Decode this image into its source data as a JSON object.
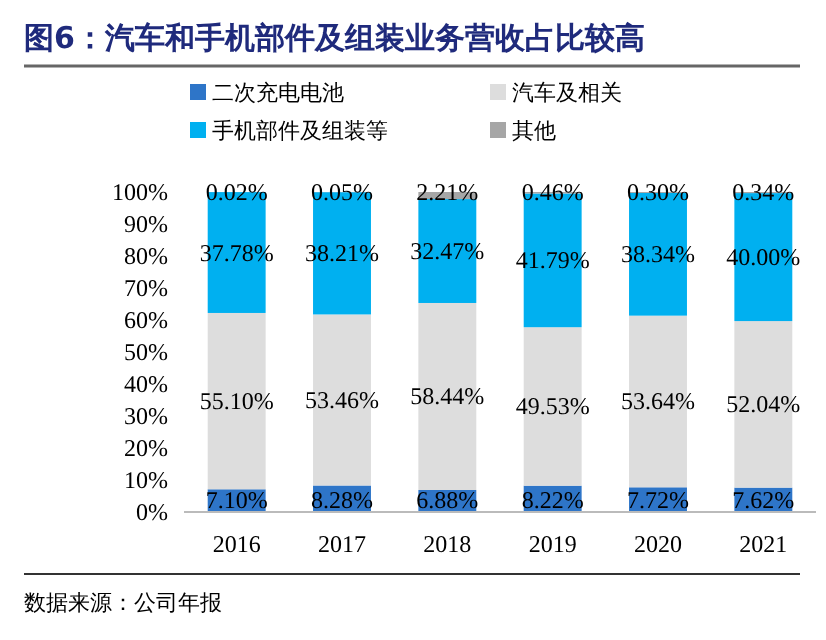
{
  "chart_data": {
    "type": "bar",
    "stacked": true,
    "title": "图6：汽车和手机部件及组装业务营收占比较高",
    "categories": [
      "2016",
      "2017",
      "2018",
      "2019",
      "2020",
      "2021"
    ],
    "series": [
      {
        "name": "二次充电电池",
        "color": "#2e75c8",
        "values": [
          7.1,
          8.28,
          6.88,
          8.22,
          7.72,
          7.62
        ],
        "value_labels": [
          "7.10%",
          "8.28%",
          "6.88%",
          "8.22%",
          "7.72%",
          "7.62%"
        ]
      },
      {
        "name": "汽车及相关",
        "color": "#dddddd",
        "values": [
          55.1,
          53.46,
          58.44,
          49.53,
          53.64,
          52.04
        ],
        "value_labels": [
          "55.10%",
          "53.46%",
          "58.44%",
          "49.53%",
          "53.64%",
          "52.04%"
        ]
      },
      {
        "name": "手机部件及组装等",
        "color": "#00b0f0",
        "values": [
          37.78,
          38.21,
          32.47,
          41.79,
          38.34,
          40.0
        ],
        "value_labels": [
          "37.78%",
          "38.21%",
          "32.47%",
          "41.79%",
          "38.34%",
          "40.00%"
        ]
      },
      {
        "name": "其他",
        "color": "#a6a6a6",
        "values": [
          0.02,
          0.05,
          2.21,
          0.46,
          0.3,
          0.34
        ],
        "value_labels": [
          "0.02%",
          "0.05%",
          "2.21%",
          "0.46%",
          "0.30%",
          "0.34%"
        ]
      }
    ],
    "ylim": [
      0,
      100
    ],
    "yticks": [
      {
        "value": 0,
        "label": "0%"
      },
      {
        "value": 10,
        "label": "10%"
      },
      {
        "value": 20,
        "label": "20%"
      },
      {
        "value": 30,
        "label": "30%"
      },
      {
        "value": 40,
        "label": "40%"
      },
      {
        "value": 50,
        "label": "50%"
      },
      {
        "value": 60,
        "label": "60%"
      },
      {
        "value": 70,
        "label": "70%"
      },
      {
        "value": 80,
        "label": "80%"
      },
      {
        "value": 90,
        "label": "90%"
      },
      {
        "value": 100,
        "label": "100%"
      }
    ],
    "legend": "top",
    "grid": false,
    "annotations": [
      "数据来源：公司年报"
    ]
  }
}
